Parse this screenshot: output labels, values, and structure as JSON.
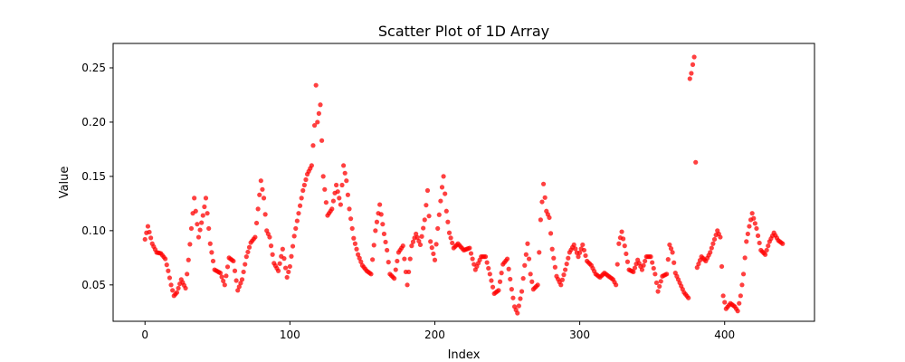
{
  "chart_data": {
    "type": "scatter",
    "title": "Scatter Plot of 1D Array",
    "xlabel": "Index",
    "ylabel": "Value",
    "xlim": [
      -22,
      462
    ],
    "ylim": [
      0.0165,
      0.2725
    ],
    "xticks": [
      0,
      100,
      200,
      300,
      400
    ],
    "yticks": [
      0.05,
      0.1,
      0.15,
      0.2,
      0.25
    ],
    "ytick_labels": [
      "0.05",
      "0.10",
      "0.15",
      "0.20",
      "0.25"
    ],
    "grid": false,
    "legend": false,
    "marker_color": "#ff0000",
    "anchors": [
      [
        0,
        0.092
      ],
      [
        2,
        0.104
      ],
      [
        5,
        0.088
      ],
      [
        8,
        0.08
      ],
      [
        11,
        0.079
      ],
      [
        14,
        0.074
      ],
      [
        16,
        0.063
      ],
      [
        18,
        0.05
      ],
      [
        20,
        0.04
      ],
      [
        22,
        0.043
      ],
      [
        25,
        0.055
      ],
      [
        28,
        0.047
      ],
      [
        30,
        0.073
      ],
      [
        32,
        0.102
      ],
      [
        34,
        0.13
      ],
      [
        37,
        0.094
      ],
      [
        40,
        0.114
      ],
      [
        42,
        0.13
      ],
      [
        45,
        0.088
      ],
      [
        48,
        0.064
      ],
      [
        52,
        0.061
      ],
      [
        55,
        0.05
      ],
      [
        58,
        0.075
      ],
      [
        61,
        0.072
      ],
      [
        64,
        0.045
      ],
      [
        67,
        0.055
      ],
      [
        70,
        0.076
      ],
      [
        73,
        0.089
      ],
      [
        76,
        0.094
      ],
      [
        78,
        0.12
      ],
      [
        80,
        0.146
      ],
      [
        82,
        0.13
      ],
      [
        84,
        0.1
      ],
      [
        86,
        0.094
      ],
      [
        89,
        0.07
      ],
      [
        92,
        0.063
      ],
      [
        95,
        0.083
      ],
      [
        98,
        0.057
      ],
      [
        100,
        0.067
      ],
      [
        103,
        0.095
      ],
      [
        106,
        0.116
      ],
      [
        109,
        0.137
      ],
      [
        112,
        0.152
      ],
      [
        115,
        0.16
      ],
      [
        117,
        0.197
      ],
      [
        118,
        0.234
      ],
      [
        119,
        0.2
      ],
      [
        121,
        0.216
      ],
      [
        123,
        0.15
      ],
      [
        126,
        0.114
      ],
      [
        129,
        0.12
      ],
      [
        132,
        0.142
      ],
      [
        135,
        0.124
      ],
      [
        137,
        0.16
      ],
      [
        139,
        0.146
      ],
      [
        141,
        0.12
      ],
      [
        144,
        0.093
      ],
      [
        147,
        0.078
      ],
      [
        150,
        0.068
      ],
      [
        153,
        0.063
      ],
      [
        156,
        0.06
      ],
      [
        159,
        0.1
      ],
      [
        162,
        0.124
      ],
      [
        165,
        0.097
      ],
      [
        167,
        0.082
      ],
      [
        169,
        0.06
      ],
      [
        172,
        0.056
      ],
      [
        175,
        0.08
      ],
      [
        178,
        0.086
      ],
      [
        181,
        0.05
      ],
      [
        184,
        0.086
      ],
      [
        187,
        0.097
      ],
      [
        190,
        0.087
      ],
      [
        193,
        0.11
      ],
      [
        195,
        0.137
      ],
      [
        197,
        0.09
      ],
      [
        200,
        0.073
      ],
      [
        202,
        0.102
      ],
      [
        205,
        0.14
      ],
      [
        206,
        0.15
      ],
      [
        208,
        0.118
      ],
      [
        210,
        0.098
      ],
      [
        213,
        0.084
      ],
      [
        216,
        0.088
      ],
      [
        220,
        0.082
      ],
      [
        224,
        0.084
      ],
      [
        228,
        0.064
      ],
      [
        232,
        0.076
      ],
      [
        235,
        0.076
      ],
      [
        238,
        0.06
      ],
      [
        241,
        0.042
      ],
      [
        244,
        0.045
      ],
      [
        247,
        0.069
      ],
      [
        250,
        0.074
      ],
      [
        253,
        0.046
      ],
      [
        255,
        0.03
      ],
      [
        257,
        0.024
      ],
      [
        260,
        0.044
      ],
      [
        262,
        0.068
      ],
      [
        264,
        0.088
      ],
      [
        266,
        0.06
      ],
      [
        268,
        0.046
      ],
      [
        271,
        0.05
      ],
      [
        273,
        0.11
      ],
      [
        275,
        0.143
      ],
      [
        277,
        0.118
      ],
      [
        279,
        0.112
      ],
      [
        281,
        0.083
      ],
      [
        284,
        0.058
      ],
      [
        287,
        0.05
      ],
      [
        290,
        0.064
      ],
      [
        293,
        0.08
      ],
      [
        296,
        0.087
      ],
      [
        299,
        0.076
      ],
      [
        302,
        0.087
      ],
      [
        305,
        0.072
      ],
      [
        308,
        0.068
      ],
      [
        311,
        0.06
      ],
      [
        314,
        0.057
      ],
      [
        317,
        0.061
      ],
      [
        320,
        0.058
      ],
      [
        323,
        0.055
      ],
      [
        325,
        0.05
      ],
      [
        327,
        0.088
      ],
      [
        329,
        0.099
      ],
      [
        331,
        0.086
      ],
      [
        334,
        0.064
      ],
      [
        337,
        0.062
      ],
      [
        340,
        0.073
      ],
      [
        343,
        0.064
      ],
      [
        346,
        0.076
      ],
      [
        349,
        0.076
      ],
      [
        352,
        0.06
      ],
      [
        354,
        0.044
      ],
      [
        357,
        0.058
      ],
      [
        360,
        0.06
      ],
      [
        362,
        0.087
      ],
      [
        364,
        0.08
      ],
      [
        366,
        0.061
      ],
      [
        369,
        0.052
      ],
      [
        372,
        0.043
      ],
      [
        375,
        0.038
      ],
      [
        376,
        0.24
      ],
      [
        377,
        0.245
      ],
      [
        378,
        0.253
      ],
      [
        379,
        0.26
      ],
      [
        381,
        0.066
      ],
      [
        384,
        0.076
      ],
      [
        387,
        0.072
      ],
      [
        390,
        0.08
      ],
      [
        393,
        0.092
      ],
      [
        395,
        0.1
      ],
      [
        397,
        0.094
      ],
      [
        399,
        0.04
      ],
      [
        401,
        0.028
      ],
      [
        404,
        0.033
      ],
      [
        407,
        0.03
      ],
      [
        409,
        0.026
      ],
      [
        411,
        0.04
      ],
      [
        413,
        0.06
      ],
      [
        415,
        0.09
      ],
      [
        417,
        0.104
      ],
      [
        419,
        0.116
      ],
      [
        422,
        0.102
      ],
      [
        425,
        0.082
      ],
      [
        428,
        0.078
      ],
      [
        431,
        0.09
      ],
      [
        434,
        0.098
      ],
      [
        437,
        0.091
      ],
      [
        440,
        0.088
      ]
    ]
  }
}
